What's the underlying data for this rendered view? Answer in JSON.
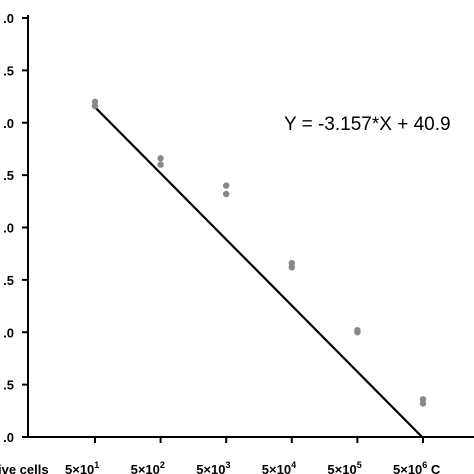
{
  "chart_data": {
    "type": "scatter",
    "title": "",
    "xlabel_prefix": "ive cells",
    "ylabel": "",
    "x_categories": [
      {
        "base": "5x10",
        "exp": "1"
      },
      {
        "base": "5x10",
        "exp": "2"
      },
      {
        "base": "5x10",
        "exp": "3"
      },
      {
        "base": "5x10",
        "exp": "4"
      },
      {
        "base": "5x10",
        "exp": "5"
      },
      {
        "base": "5x10",
        "exp": "6"
      }
    ],
    "x_trailing_text": "C",
    "y_tick_labels": [
      ".0",
      ".5",
      ".0",
      ".5",
      ".0",
      ".5",
      ".0",
      ".5",
      ".0"
    ],
    "ylim": [
      22.0,
      42.0
    ],
    "points": [
      {
        "x": 1,
        "y": [
          38.0,
          37.8
        ]
      },
      {
        "x": 2,
        "y": [
          35.3,
          35.0
        ]
      },
      {
        "x": 3,
        "y": [
          34.0,
          33.6
        ]
      },
      {
        "x": 4,
        "y": [
          30.3,
          30.1
        ]
      },
      {
        "x": 5,
        "y": [
          27.1,
          27.0
        ]
      },
      {
        "x": 6,
        "y": [
          23.8,
          23.6
        ]
      }
    ],
    "fit_line": {
      "slope": -3.157,
      "intercept": 40.9,
      "x_range": [
        1,
        6
      ]
    },
    "equation_label": "Y = -3.157*X + 40.9",
    "colors": {
      "points": "#888888",
      "line": "#000000",
      "axis": "#000000"
    }
  }
}
